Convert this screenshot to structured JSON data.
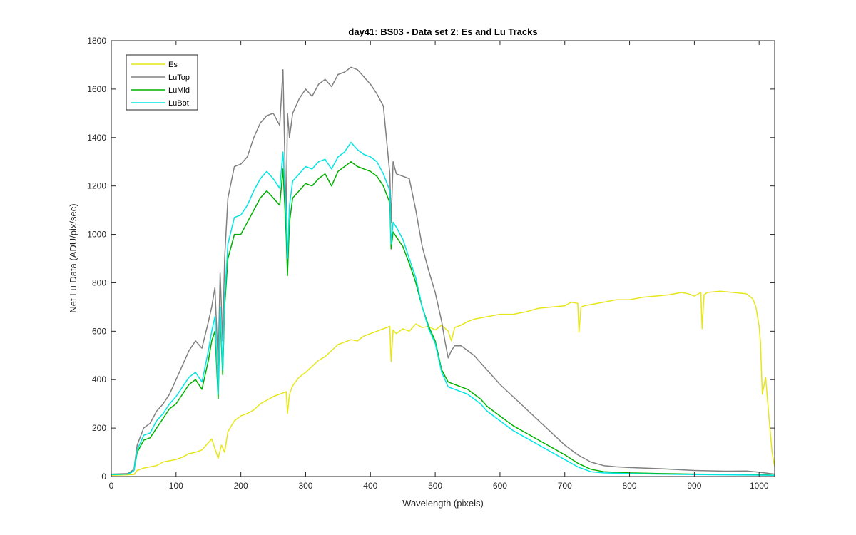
{
  "chart_data": {
    "type": "line",
    "title": "day41: BS03 - Data set 2: Es and Lu Tracks",
    "xlabel": "Wavelength (pixels)",
    "ylabel": "Net Lu Data (ADU/pix/sec)",
    "xlim": [
      0,
      1024
    ],
    "ylim": [
      0,
      1800
    ],
    "xticks": [
      0,
      100,
      200,
      300,
      400,
      500,
      600,
      700,
      800,
      900,
      1000
    ],
    "yticks": [
      0,
      200,
      400,
      600,
      800,
      1000,
      1200,
      1400,
      1600,
      1800
    ],
    "grid": false,
    "legend_location": "top-left",
    "series": [
      {
        "name": "Es",
        "color": "#e6e619",
        "x": [
          0,
          35,
          40,
          50,
          60,
          70,
          80,
          90,
          100,
          110,
          120,
          130,
          140,
          150,
          155,
          160,
          165,
          170,
          175,
          180,
          190,
          200,
          210,
          220,
          230,
          240,
          250,
          260,
          270,
          272,
          275,
          280,
          290,
          300,
          310,
          320,
          330,
          340,
          350,
          360,
          370,
          380,
          390,
          400,
          410,
          420,
          430,
          432,
          435,
          440,
          450,
          460,
          470,
          480,
          490,
          500,
          510,
          520,
          525,
          530,
          540,
          550,
          560,
          570,
          580,
          590,
          600,
          620,
          640,
          660,
          680,
          700,
          710,
          720,
          722,
          725,
          730,
          740,
          760,
          780,
          800,
          820,
          840,
          860,
          880,
          890,
          900,
          910,
          912,
          915,
          920,
          940,
          960,
          980,
          990,
          995,
          1000,
          1002,
          1005,
          1010,
          1015,
          1020,
          1024
        ],
        "values": [
          5,
          8,
          25,
          35,
          40,
          45,
          60,
          65,
          70,
          80,
          95,
          100,
          110,
          140,
          155,
          115,
          75,
          130,
          100,
          185,
          230,
          250,
          260,
          275,
          300,
          315,
          330,
          340,
          350,
          260,
          340,
          375,
          410,
          430,
          455,
          480,
          495,
          520,
          545,
          555,
          565,
          560,
          580,
          590,
          600,
          610,
          620,
          475,
          605,
          590,
          610,
          600,
          630,
          615,
          620,
          605,
          625,
          600,
          560,
          615,
          625,
          640,
          650,
          655,
          660,
          665,
          670,
          670,
          680,
          695,
          700,
          705,
          720,
          715,
          595,
          700,
          705,
          710,
          720,
          730,
          730,
          740,
          745,
          750,
          760,
          755,
          745,
          760,
          610,
          750,
          760,
          765,
          760,
          755,
          735,
          700,
          620,
          560,
          340,
          410,
          250,
          100,
          40
        ]
      },
      {
        "name": "LuTop",
        "color": "#808080",
        "x": [
          0,
          25,
          30,
          35,
          40,
          50,
          60,
          70,
          80,
          90,
          100,
          110,
          120,
          130,
          140,
          150,
          155,
          160,
          165,
          168,
          172,
          175,
          180,
          190,
          200,
          210,
          220,
          230,
          240,
          250,
          260,
          265,
          270,
          272,
          275,
          280,
          290,
          300,
          310,
          320,
          330,
          340,
          350,
          360,
          370,
          380,
          390,
          400,
          410,
          420,
          430,
          432,
          435,
          440,
          450,
          460,
          470,
          480,
          490,
          500,
          510,
          515,
          520,
          525,
          530,
          540,
          550,
          560,
          570,
          580,
          590,
          600,
          620,
          640,
          660,
          680,
          700,
          720,
          740,
          760,
          780,
          800,
          850,
          900,
          950,
          980,
          1000,
          1024
        ],
        "values": [
          10,
          12,
          20,
          30,
          130,
          200,
          220,
          270,
          300,
          340,
          400,
          460,
          520,
          560,
          530,
          640,
          700,
          780,
          460,
          840,
          560,
          900,
          1150,
          1280,
          1290,
          1320,
          1400,
          1460,
          1490,
          1500,
          1450,
          1680,
          1050,
          1500,
          1400,
          1500,
          1560,
          1600,
          1570,
          1620,
          1640,
          1610,
          1660,
          1670,
          1690,
          1680,
          1650,
          1620,
          1580,
          1530,
          1250,
          1050,
          1300,
          1250,
          1240,
          1230,
          1100,
          950,
          850,
          760,
          640,
          560,
          490,
          520,
          540,
          540,
          520,
          500,
          470,
          440,
          410,
          380,
          330,
          280,
          230,
          180,
          130,
          90,
          60,
          45,
          40,
          37,
          32,
          25,
          22,
          23,
          18,
          10
        ]
      },
      {
        "name": "LuMid",
        "color": "#00b000",
        "x": [
          0,
          25,
          30,
          35,
          40,
          50,
          60,
          70,
          80,
          90,
          100,
          110,
          120,
          130,
          140,
          150,
          155,
          160,
          165,
          168,
          172,
          175,
          180,
          190,
          200,
          210,
          220,
          230,
          240,
          250,
          260,
          265,
          270,
          272,
          275,
          280,
          290,
          300,
          310,
          320,
          330,
          340,
          350,
          360,
          370,
          380,
          390,
          400,
          410,
          420,
          430,
          432,
          435,
          440,
          450,
          460,
          470,
          480,
          490,
          500,
          510,
          520,
          530,
          540,
          550,
          560,
          570,
          580,
          600,
          620,
          640,
          660,
          680,
          700,
          720,
          740,
          760,
          800,
          850,
          900,
          950,
          1000,
          1024
        ],
        "values": [
          8,
          10,
          15,
          25,
          100,
          150,
          160,
          200,
          240,
          280,
          300,
          340,
          380,
          400,
          360,
          480,
          560,
          600,
          320,
          660,
          420,
          700,
          900,
          1000,
          1000,
          1050,
          1100,
          1150,
          1180,
          1150,
          1120,
          1270,
          1000,
          830,
          1050,
          1150,
          1180,
          1210,
          1200,
          1230,
          1250,
          1200,
          1260,
          1280,
          1300,
          1280,
          1270,
          1260,
          1240,
          1200,
          1130,
          940,
          1010,
          990,
          950,
          880,
          800,
          700,
          620,
          560,
          440,
          390,
          380,
          370,
          360,
          340,
          320,
          290,
          250,
          210,
          180,
          150,
          120,
          90,
          55,
          30,
          20,
          15,
          12,
          10,
          9,
          8,
          5
        ]
      },
      {
        "name": "LuBot",
        "color": "#00e5e5",
        "x": [
          0,
          25,
          30,
          35,
          40,
          50,
          60,
          70,
          80,
          90,
          100,
          110,
          120,
          130,
          140,
          150,
          155,
          160,
          165,
          168,
          172,
          175,
          180,
          190,
          200,
          210,
          220,
          230,
          240,
          250,
          260,
          265,
          270,
          272,
          275,
          280,
          290,
          300,
          310,
          320,
          330,
          340,
          350,
          360,
          370,
          380,
          390,
          400,
          410,
          420,
          430,
          432,
          435,
          440,
          450,
          460,
          470,
          480,
          490,
          500,
          510,
          520,
          530,
          540,
          550,
          560,
          570,
          580,
          600,
          620,
          640,
          660,
          680,
          700,
          720,
          740,
          760,
          800,
          850,
          900,
          950,
          1000,
          1024
        ],
        "values": [
          8,
          10,
          15,
          25,
          110,
          170,
          180,
          230,
          260,
          300,
          330,
          370,
          410,
          430,
          390,
          520,
          600,
          660,
          340,
          700,
          440,
          730,
          960,
          1070,
          1080,
          1120,
          1180,
          1230,
          1260,
          1230,
          1190,
          1340,
          1080,
          900,
          1120,
          1220,
          1250,
          1280,
          1270,
          1300,
          1310,
          1270,
          1320,
          1340,
          1380,
          1350,
          1330,
          1320,
          1300,
          1250,
          1180,
          960,
          1050,
          1030,
          980,
          900,
          820,
          700,
          610,
          550,
          430,
          370,
          360,
          350,
          340,
          320,
          300,
          270,
          230,
          190,
          160,
          130,
          100,
          70,
          40,
          20,
          15,
          12,
          10,
          8,
          7,
          6,
          5
        ]
      }
    ]
  }
}
